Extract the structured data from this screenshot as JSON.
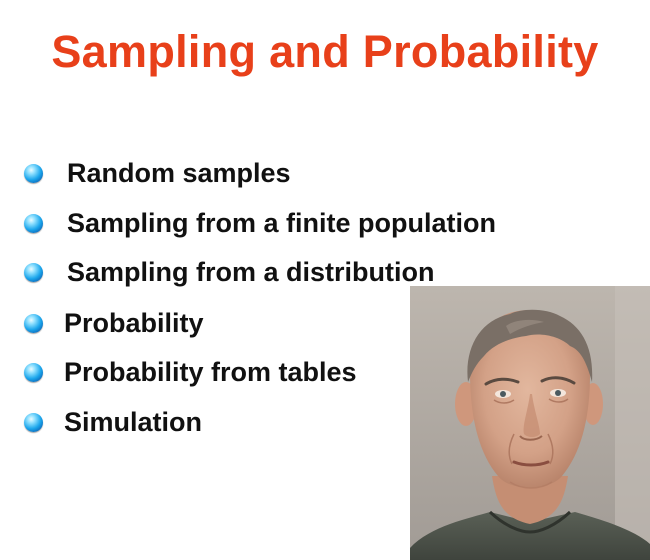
{
  "slide": {
    "title": "Sampling and Probability",
    "title_color": "#e8401a",
    "bullet_icon": "blue-sphere-bullet-icon",
    "bullets": [
      "Random samples",
      "Sampling from a finite population",
      "Sampling from a distribution",
      "Probability",
      "Probability from tables",
      "Simulation"
    ]
  },
  "photo": {
    "subject": "portrait-photo"
  }
}
